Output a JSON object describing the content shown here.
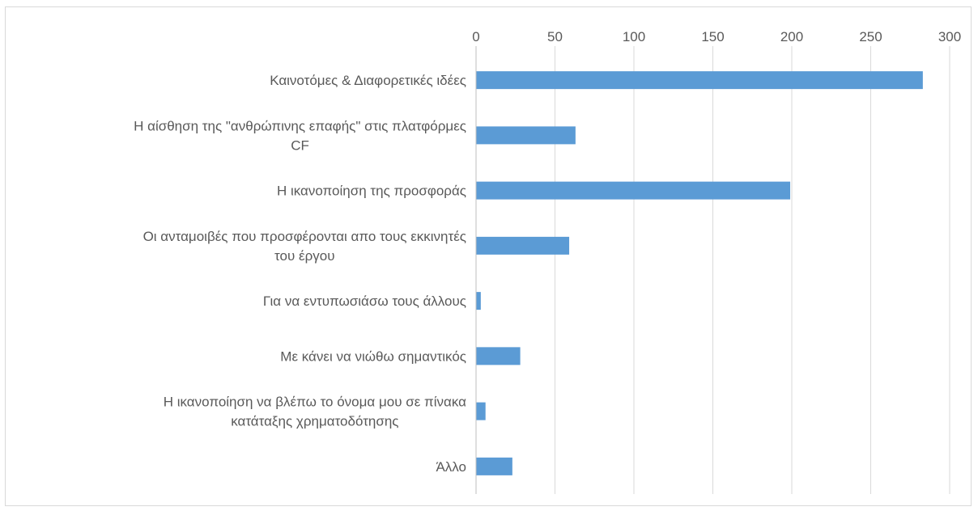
{
  "chart_data": {
    "type": "bar",
    "orientation": "horizontal",
    "x_axis_position": "top",
    "grid": true,
    "xlim": [
      0,
      300
    ],
    "xticks": [
      "0",
      "50",
      "100",
      "150",
      "200",
      "250",
      "300"
    ],
    "bar_color": "#5b9bd5",
    "categories": [
      [
        "Καινοτόμες & Διαφορετικές ιδέες"
      ],
      [
        "Η αίσθηση της \"ανθρώπινης επαφής\" στις πλατφόρμες",
        "CF"
      ],
      [
        "Η ικανοποίηση της προσφοράς"
      ],
      [
        "Οι ανταμοιβές που προσφέρονται απο τους εκκινητές",
        "του έργου"
      ],
      [
        "Για να εντυπωσιάσω τους άλλους"
      ],
      [
        "Με κάνει να νιώθω σημαντικός"
      ],
      [
        "Η ικανοποίηση να βλέπω το όνομα μου σε πίνακα",
        "κατάταξης χρηματοδότησης"
      ],
      [
        "Άλλο"
      ]
    ],
    "values": [
      283,
      63,
      199,
      59,
      3,
      28,
      6,
      23
    ]
  }
}
